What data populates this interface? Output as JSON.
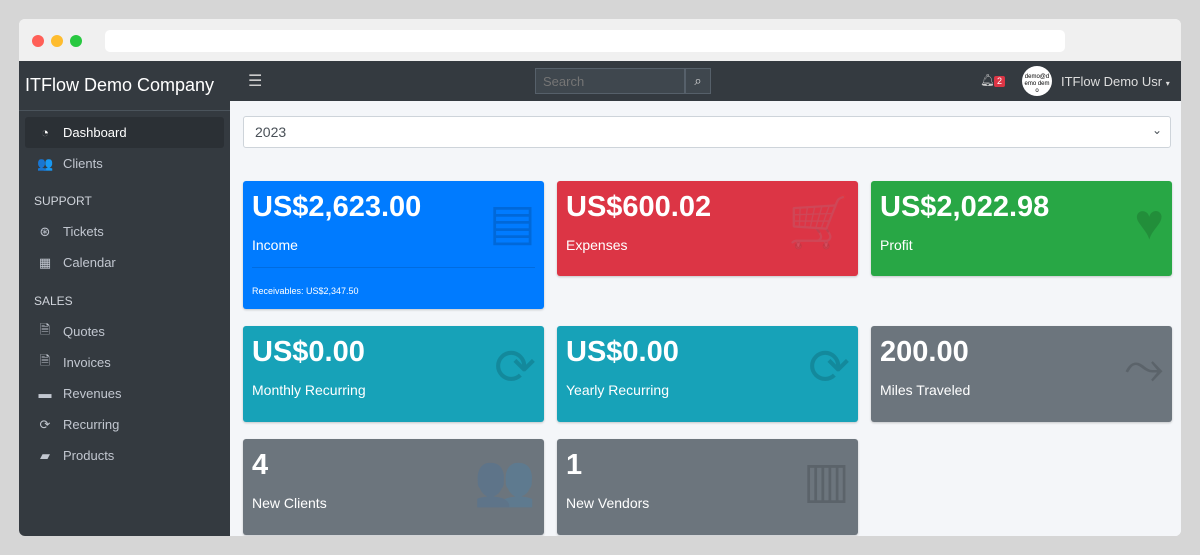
{
  "browser": {
    "dots": [
      "#ff5f57",
      "#febc2e",
      "#28c840"
    ]
  },
  "sidebar": {
    "brand": "ITFlow Demo Company",
    "items": [
      {
        "label": "Dashboard",
        "icon": "tachometer-icon",
        "glyph": "◔"
      },
      {
        "label": "Clients",
        "icon": "users-icon",
        "glyph": "👥"
      }
    ],
    "support_header": "SUPPORT",
    "support": [
      {
        "label": "Tickets",
        "icon": "life-ring-icon",
        "glyph": "⊛"
      },
      {
        "label": "Calendar",
        "icon": "calendar-icon",
        "glyph": "▦"
      }
    ],
    "sales_header": "SALES",
    "sales": [
      {
        "label": "Quotes",
        "icon": "file-icon",
        "glyph": "🗎"
      },
      {
        "label": "Invoices",
        "icon": "invoice-icon",
        "glyph": "🗎"
      },
      {
        "label": "Revenues",
        "icon": "credit-card-icon",
        "glyph": "▬"
      },
      {
        "label": "Recurring",
        "icon": "sync-icon",
        "glyph": "⟳"
      },
      {
        "label": "Products",
        "icon": "box-icon",
        "glyph": "▰"
      }
    ]
  },
  "topbar": {
    "search_placeholder": "Search",
    "notifications": "2",
    "avatar_text": "demo@demo demo",
    "user": "ITFlow Demo Usr"
  },
  "filter": {
    "year": "2023"
  },
  "cards": [
    {
      "value": "US$2,623.00",
      "label": "Income",
      "footer": "Receivables: US$2,347.50",
      "color": "#007bff",
      "icon": "credit-card-icon",
      "glyph": "▤"
    },
    {
      "value": "US$600.02",
      "label": "Expenses",
      "color": "#dc3545",
      "icon": "shopping-cart-icon",
      "glyph": "🛒"
    },
    {
      "value": "US$2,022.98",
      "label": "Profit",
      "color": "#28a745",
      "icon": "heart-icon",
      "glyph": "♥"
    },
    {
      "value": "US$0.00",
      "label": "Monthly Recurring",
      "color": "#17a2b8",
      "icon": "sync-icon",
      "glyph": "⟳"
    },
    {
      "value": "US$0.00",
      "label": "Yearly Recurring",
      "color": "#17a2b8",
      "icon": "sync-icon",
      "glyph": "⟳"
    },
    {
      "value": "200.00",
      "label": "Miles Traveled",
      "color": "#6c757d",
      "icon": "route-icon",
      "glyph": "⤳"
    },
    {
      "value": "4",
      "label": "New Clients",
      "color": "#6c757d",
      "icon": "users-icon",
      "glyph": "👥"
    },
    {
      "value": "1",
      "label": "New Vendors",
      "color": "#6c757d",
      "icon": "building-icon",
      "glyph": "▥"
    }
  ]
}
